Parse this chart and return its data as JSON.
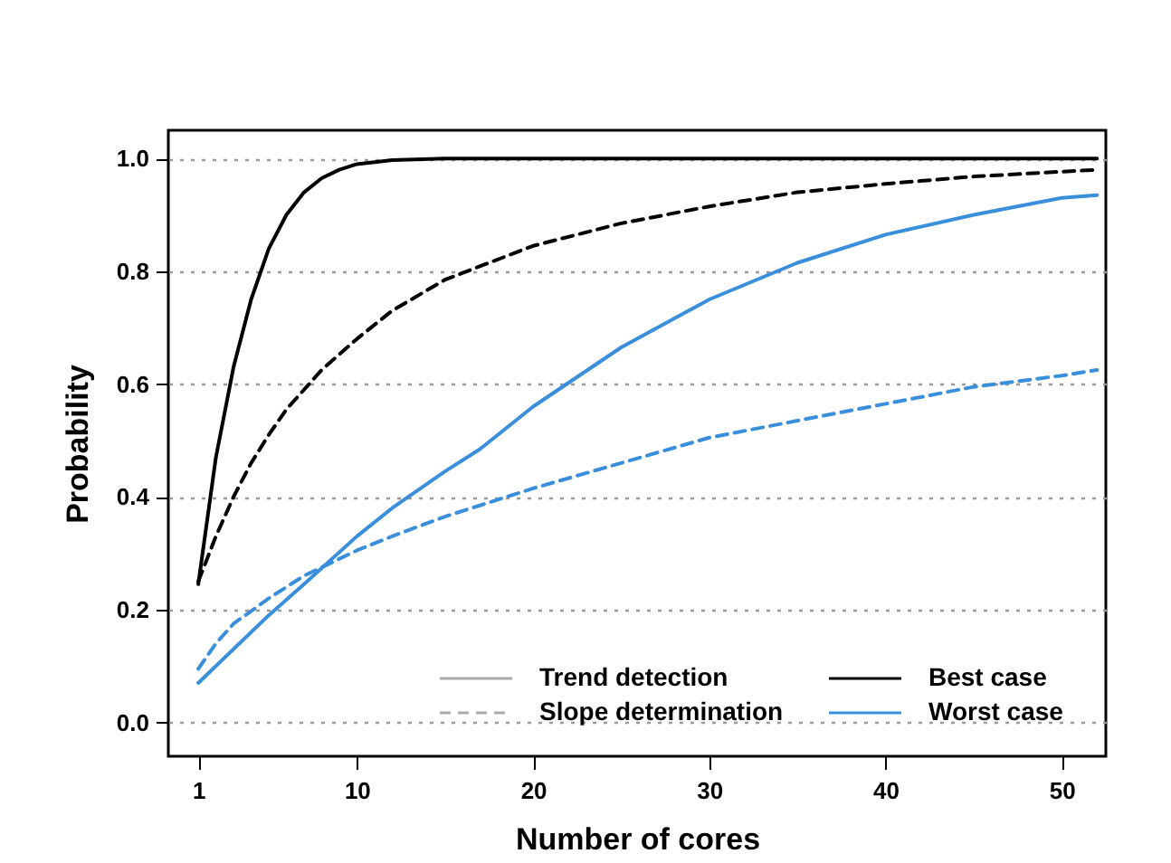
{
  "chart_data": {
    "type": "line",
    "xlabel": "Number of cores",
    "ylabel": "Probability",
    "xlim": [
      -0.7,
      52.5
    ],
    "ylim": [
      -0.06,
      1.05
    ],
    "xticks": [
      1,
      10,
      20,
      30,
      40,
      50
    ],
    "yticks": [
      {
        "value": 0,
        "label": "0.0"
      },
      0.2,
      0.4,
      0.6,
      0.8,
      {
        "value": 1,
        "label": "1.0"
      }
    ],
    "grid": "y",
    "legend": "bottom right",
    "marker": "none",
    "annotations": [
      "Trend detection",
      "Slope determination"
    ],
    "series": [
      {
        "name": "Best case",
        "color": "#000000",
        "line_style": "solid",
        "x": [
          1,
          2,
          3,
          4,
          5,
          6,
          7,
          8,
          9,
          10,
          12,
          15,
          20,
          30,
          40,
          52
        ],
        "values": [
          0.245,
          0.47,
          0.63,
          0.75,
          0.84,
          0.9,
          0.94,
          0.965,
          0.98,
          0.99,
          0.997,
          1.0,
          1.0,
          1.0,
          1.0,
          1.0
        ]
      },
      {
        "color": "#000000",
        "line_style": "dashed",
        "x": [
          1,
          2,
          3,
          4,
          5,
          6,
          8,
          10,
          12,
          15,
          20,
          25,
          30,
          35,
          40,
          45,
          52
        ],
        "values": [
          0.25,
          0.33,
          0.4,
          0.46,
          0.51,
          0.555,
          0.625,
          0.68,
          0.73,
          0.785,
          0.845,
          0.885,
          0.915,
          0.94,
          0.955,
          0.968,
          0.98
        ]
      },
      {
        "name": "Worst case",
        "color": "#3a8fdc",
        "line_style": "solid",
        "x": [
          1,
          3,
          5,
          7,
          10,
          12,
          15,
          17,
          20,
          25,
          30,
          35,
          40,
          45,
          50,
          52
        ],
        "values": [
          0.07,
          0.13,
          0.19,
          0.245,
          0.33,
          0.38,
          0.445,
          0.485,
          0.56,
          0.665,
          0.75,
          0.815,
          0.865,
          0.9,
          0.93,
          0.935
        ]
      },
      {
        "color": "#3a8fdc",
        "line_style": "dashed",
        "x": [
          1,
          2,
          3,
          5,
          7,
          10,
          12,
          15,
          20,
          25,
          30,
          35,
          40,
          45,
          50,
          52
        ],
        "values": [
          0.095,
          0.14,
          0.175,
          0.22,
          0.26,
          0.305,
          0.33,
          0.365,
          0.415,
          0.46,
          0.505,
          0.535,
          0.565,
          0.595,
          0.615,
          0.625
        ]
      }
    ]
  }
}
